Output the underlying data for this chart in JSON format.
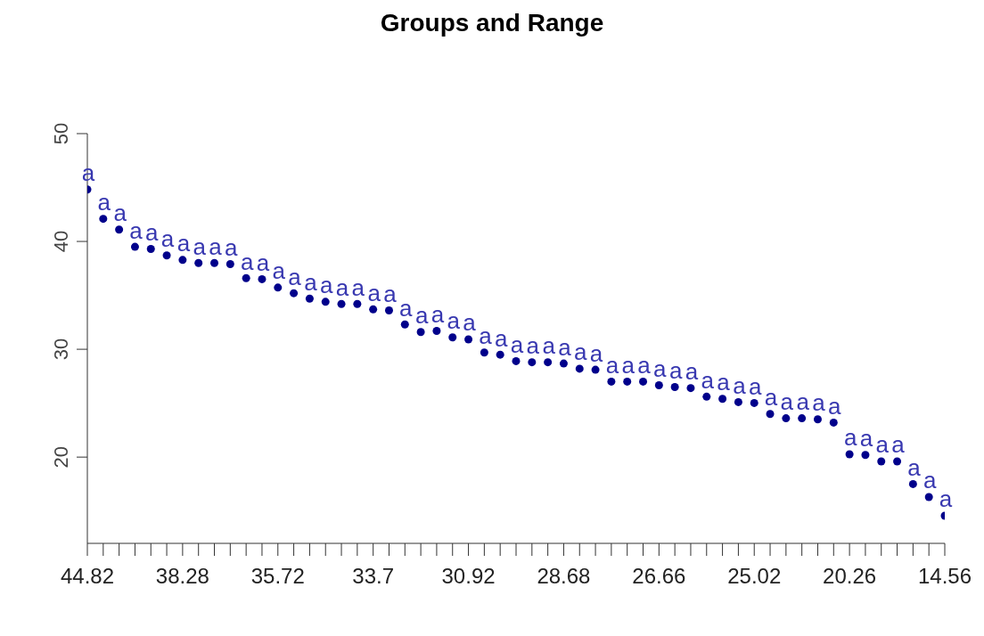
{
  "chart_data": {
    "type": "scatter",
    "title": "Groups and Range",
    "categories": [
      "44.82",
      null,
      null,
      null,
      null,
      null,
      "38.28",
      null,
      null,
      null,
      null,
      null,
      "35.72",
      null,
      null,
      null,
      null,
      null,
      "33.7",
      null,
      null,
      null,
      null,
      null,
      "30.92",
      null,
      null,
      null,
      null,
      null,
      "28.68",
      null,
      null,
      null,
      null,
      null,
      "26.66",
      null,
      null,
      null,
      null,
      null,
      "25.02",
      null,
      null,
      null,
      null,
      null,
      "20.26",
      null,
      null,
      null,
      null,
      null,
      "14.56"
    ],
    "values": [
      44.82,
      42.1,
      41.1,
      39.5,
      39.3,
      38.7,
      38.28,
      38.0,
      38.0,
      37.9,
      36.6,
      36.5,
      35.72,
      35.2,
      34.7,
      34.4,
      34.2,
      34.2,
      33.7,
      33.6,
      32.3,
      31.6,
      31.7,
      31.1,
      30.92,
      29.7,
      29.5,
      28.9,
      28.8,
      28.8,
      28.68,
      28.2,
      28.1,
      27.0,
      27.0,
      27.0,
      26.66,
      26.5,
      26.4,
      25.6,
      25.4,
      25.1,
      25.02,
      24.0,
      23.6,
      23.6,
      23.5,
      23.2,
      20.26,
      20.2,
      19.6,
      19.6,
      17.5,
      16.3,
      14.56
    ],
    "value_labels": [
      "a",
      "a",
      "a",
      "a",
      "a",
      "a",
      "a",
      "a",
      "a",
      "a",
      "a",
      "a",
      "a",
      "a",
      "a",
      "a",
      "a",
      "a",
      "a",
      "a",
      "a",
      "a",
      "a",
      "a",
      "a",
      "a",
      "a",
      "a",
      "a",
      "a",
      "a",
      "a",
      "a",
      "a",
      "a",
      "a",
      "a",
      "a",
      "a",
      "a",
      "a",
      "a",
      "a",
      "a",
      "a",
      "a",
      "a",
      "a",
      "a",
      "a",
      "a",
      "a",
      "a",
      "a",
      "a"
    ],
    "color": "#00008b",
    "marker": "circle",
    "ylim": [
      12,
      50
    ],
    "yticks": [
      20,
      30,
      40,
      50
    ],
    "grid": false,
    "legend": false
  }
}
